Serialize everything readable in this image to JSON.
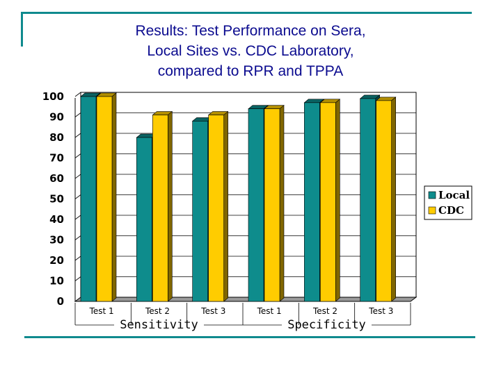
{
  "title_lines": [
    "Results: Test Performance on Sera,",
    "Local Sites vs. CDC Laboratory,",
    "compared to RPR and TPPA"
  ],
  "colors": {
    "frame": "#0f8a8e",
    "title": "#0b0b8f",
    "local": "#0e8c8c",
    "cdc": "#ffcc00"
  },
  "chart_data": {
    "type": "bar",
    "title": "Results: Test Performance on Sera, Local Sites vs. CDC Laboratory, compared to RPR and TPPA",
    "xlabel": "",
    "ylabel": "",
    "ylim": [
      0,
      100
    ],
    "yticks": [
      0,
      10,
      20,
      30,
      40,
      50,
      60,
      70,
      80,
      90,
      100
    ],
    "grid": true,
    "legend_position": "right",
    "categories": [
      "Test 1",
      "Test 2",
      "Test 3",
      "Test 1",
      "Test 2",
      "Test 3"
    ],
    "groups": [
      {
        "label": "Sensitivity",
        "categories": [
          "Test 1",
          "Test 2",
          "Test 3"
        ]
      },
      {
        "label": "Specificity",
        "categories": [
          "Test 1",
          "Test 2",
          "Test 3"
        ]
      }
    ],
    "series": [
      {
        "name": "Local",
        "color": "#0e8c8c",
        "values": [
          100,
          80,
          88,
          94,
          97,
          99
        ]
      },
      {
        "name": "CDC",
        "color": "#ffcc00",
        "values": [
          100,
          91,
          91,
          94,
          97,
          98
        ]
      }
    ]
  }
}
